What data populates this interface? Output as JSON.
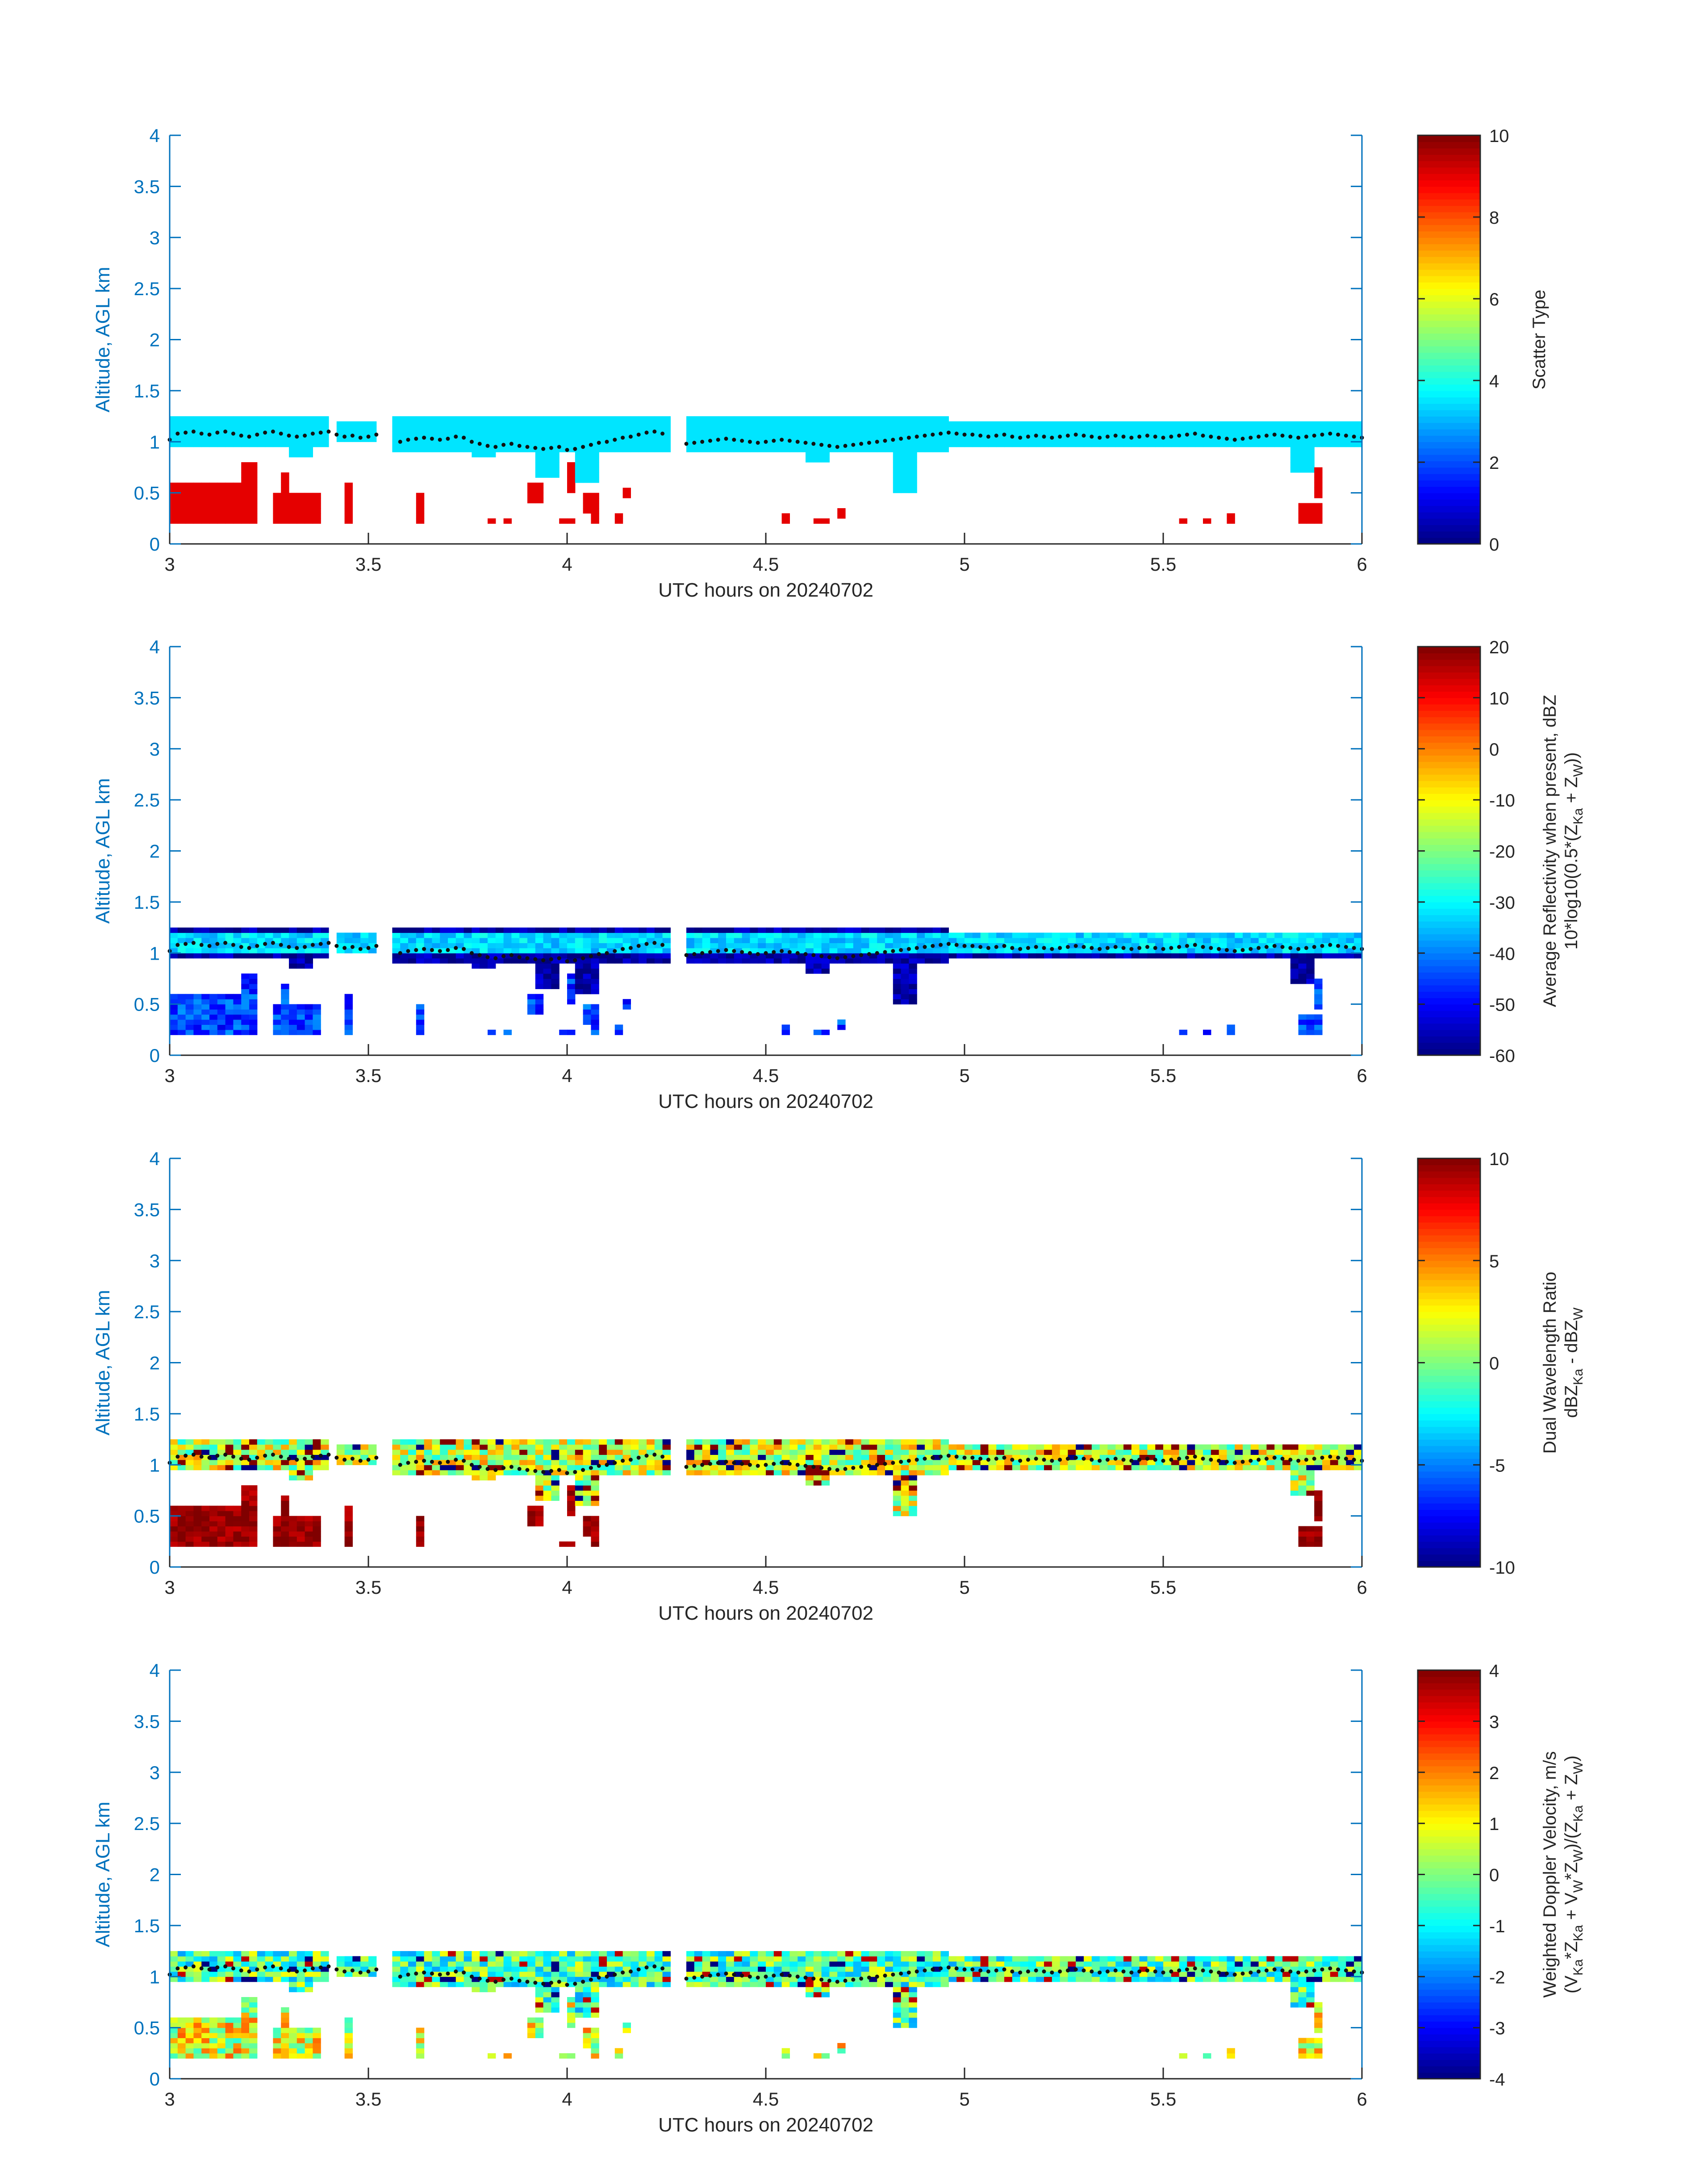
{
  "chart_data": [
    {
      "type": "heatmap",
      "title": "",
      "xlabel": "UTC hours on 20240702",
      "ylabel": "Altitude, AGL km",
      "xlim": [
        3,
        6
      ],
      "ylim": [
        0,
        4
      ],
      "x_ticks": [
        "3",
        "3.5",
        "4",
        "4.5",
        "5",
        "5.5",
        "6"
      ],
      "y_ticks": [
        "0",
        "0.5",
        "1",
        "1.5",
        "2",
        "2.5",
        "3",
        "3.5",
        "4"
      ],
      "colorbar": {
        "label_lines": [
          "Scatter Type"
        ],
        "range": [
          0,
          10
        ],
        "ticks": [
          "0",
          "2",
          "4",
          "6",
          "8",
          "10"
        ],
        "colormap": "jet"
      },
      "fields": {
        "low_layer_value": 9,
        "cloud_layer_value": 3.5
      }
    },
    {
      "type": "heatmap",
      "title": "",
      "xlabel": "UTC hours on 20240702",
      "ylabel": "Altitude, AGL km",
      "xlim": [
        3,
        6
      ],
      "ylim": [
        0,
        4
      ],
      "x_ticks": [
        "3",
        "3.5",
        "4",
        "4.5",
        "5",
        "5.5",
        "6"
      ],
      "y_ticks": [
        "0",
        "0.5",
        "1",
        "1.5",
        "2",
        "2.5",
        "3",
        "3.5",
        "4"
      ],
      "colorbar": {
        "label_lines": [
          "Average Reflectivity when present, dBZ",
          "10*log10(0.5*(Z_Ka + Z_W))"
        ],
        "range": [
          -60,
          20
        ],
        "ticks": [
          "-60",
          "-50",
          "-40",
          "-30",
          "-20",
          "-10",
          "0",
          "10",
          "20"
        ],
        "colormap": "jet"
      },
      "fields": {
        "cloud_core_value": -33,
        "cloud_edge_value": -57,
        "low_layer_value": -45
      }
    },
    {
      "type": "heatmap",
      "title": "",
      "xlabel": "UTC hours on 20240702",
      "ylabel": "Altitude, AGL km",
      "xlim": [
        3,
        6
      ],
      "ylim": [
        0,
        4
      ],
      "x_ticks": [
        "3",
        "3.5",
        "4",
        "4.5",
        "5",
        "5.5",
        "6"
      ],
      "y_ticks": [
        "0",
        "0.5",
        "1",
        "1.5",
        "2",
        "2.5",
        "3",
        "3.5",
        "4"
      ],
      "colorbar": {
        "label_lines": [
          "Dual Wavelength Ratio",
          "dBZ_Ka - dBZ_W"
        ],
        "range": [
          -10,
          10
        ],
        "ticks": [
          "-10",
          "-5",
          "0",
          "5",
          "10"
        ],
        "colormap": "jet"
      },
      "fields": {
        "cloud_core_value": 1.5,
        "low_layer_value": 9.5
      }
    },
    {
      "type": "heatmap",
      "title": "",
      "xlabel": "UTC hours on 20240702",
      "ylabel": "Altitude, AGL km",
      "xlim": [
        3,
        6
      ],
      "ylim": [
        0,
        4
      ],
      "x_ticks": [
        "3",
        "3.5",
        "4",
        "4.5",
        "5",
        "5.5",
        "6"
      ],
      "y_ticks": [
        "0",
        "0.5",
        "1",
        "1.5",
        "2",
        "2.5",
        "3",
        "3.5",
        "4"
      ],
      "colorbar": {
        "label_lines": [
          "Weighted Doppler Velocity, m/s",
          "(V_Ka*Z_Ka + V_W*Z_W)/(Z_Ka + Z_W)"
        ],
        "range": [
          -4,
          4
        ],
        "ticks": [
          "-4",
          "-3",
          "-2",
          "-1",
          "0",
          "1",
          "2",
          "3",
          "4"
        ],
        "colormap": "jet"
      },
      "fields": {
        "cloud_core_value": -0.4,
        "low_layer_value": 0.8
      }
    }
  ],
  "cloud_layer": {
    "columns": [
      {
        "t0": 3.0,
        "t1": 3.4,
        "base": 0.95,
        "top": 1.23
      },
      {
        "t0": 3.42,
        "t1": 3.53,
        "base": 0.98,
        "top": 1.22
      },
      {
        "t0": 3.57,
        "t1": 4.25,
        "base": 0.9,
        "top": 1.25
      },
      {
        "t0": 4.3,
        "t1": 4.95,
        "base": 0.88,
        "top": 1.25
      },
      {
        "t0": 4.95,
        "t1": 5.55,
        "base": 0.95,
        "top": 1.2
      },
      {
        "t0": 5.56,
        "t1": 6.0,
        "base": 0.93,
        "top": 1.22
      }
    ],
    "dips": [
      {
        "t": 3.34,
        "bottom": 0.85
      },
      {
        "t": 3.8,
        "bottom": 0.85
      },
      {
        "t": 3.95,
        "bottom": 0.65
      },
      {
        "t": 4.05,
        "bottom": 0.6
      },
      {
        "t": 4.62,
        "bottom": 0.8
      },
      {
        "t": 4.85,
        "bottom": 0.5
      },
      {
        "t": 5.85,
        "bottom": 0.7
      }
    ]
  },
  "low_layer": {
    "blocks": [
      {
        "t0": 3.0,
        "t1": 3.23,
        "bottom": 0.18,
        "top": 0.62
      },
      {
        "t0": 3.18,
        "t1": 3.23,
        "bottom": 0.18,
        "top": 0.82
      },
      {
        "t0": 3.26,
        "t1": 3.39,
        "bottom": 0.18,
        "top": 0.5
      },
      {
        "t0": 3.28,
        "t1": 3.3,
        "bottom": 0.18,
        "top": 0.72
      },
      {
        "t0": 3.44,
        "t1": 3.47,
        "bottom": 0.18,
        "top": 0.58
      },
      {
        "t0": 3.62,
        "t1": 3.65,
        "bottom": 0.18,
        "top": 0.48
      },
      {
        "t0": 3.8,
        "t1": 3.82,
        "bottom": 0.18,
        "top": 0.26
      },
      {
        "t0": 3.85,
        "t1": 3.87,
        "bottom": 0.18,
        "top": 0.26
      },
      {
        "t0": 3.9,
        "t1": 3.94,
        "bottom": 0.42,
        "top": 0.62
      },
      {
        "t0": 3.92,
        "t1": 3.93,
        "bottom": 0.18,
        "top": 0.4
      },
      {
        "t0": 3.98,
        "t1": 4.02,
        "bottom": 0.18,
        "top": 0.26
      },
      {
        "t0": 4.0,
        "t1": 4.03,
        "bottom": 0.5,
        "top": 0.8
      },
      {
        "t0": 4.04,
        "t1": 4.07,
        "bottom": 0.32,
        "top": 0.52
      },
      {
        "t0": 4.06,
        "t1": 4.08,
        "bottom": 0.18,
        "top": 0.28
      },
      {
        "t0": 4.12,
        "t1": 4.14,
        "bottom": 0.18,
        "top": 0.32
      },
      {
        "t0": 4.14,
        "t1": 4.16,
        "bottom": 0.46,
        "top": 0.56
      },
      {
        "t0": 4.53,
        "t1": 4.55,
        "bottom": 0.18,
        "top": 0.28
      },
      {
        "t0": 4.62,
        "t1": 4.65,
        "bottom": 0.18,
        "top": 0.24
      },
      {
        "t0": 4.68,
        "t1": 4.7,
        "bottom": 0.24,
        "top": 0.36
      },
      {
        "t0": 5.54,
        "t1": 5.56,
        "bottom": 0.18,
        "top": 0.26
      },
      {
        "t0": 5.59,
        "t1": 5.61,
        "bottom": 0.18,
        "top": 0.24
      },
      {
        "t0": 5.66,
        "t1": 5.68,
        "bottom": 0.18,
        "top": 0.28
      },
      {
        "t0": 5.84,
        "t1": 5.9,
        "bottom": 0.18,
        "top": 0.42
      },
      {
        "t0": 5.88,
        "t1": 5.9,
        "bottom": 0.46,
        "top": 0.76
      }
    ]
  },
  "markers": {
    "t": [
      3.0,
      3.02,
      3.04,
      3.06,
      3.08,
      3.1,
      3.12,
      3.14,
      3.16,
      3.18,
      3.2,
      3.22,
      3.24,
      3.26,
      3.28,
      3.3,
      3.32,
      3.34,
      3.36,
      3.38,
      3.4,
      3.42,
      3.44,
      3.46,
      3.48,
      3.5,
      3.52,
      3.58,
      3.6,
      3.62,
      3.64,
      3.66,
      3.68,
      3.7,
      3.72,
      3.74,
      3.76,
      3.78,
      3.8,
      3.82,
      3.84,
      3.86,
      3.88,
      3.9,
      3.92,
      3.94,
      3.96,
      3.98,
      4.0,
      4.02,
      4.04,
      4.06,
      4.08,
      4.1,
      4.12,
      4.14,
      4.16,
      4.18,
      4.2,
      4.22,
      4.24,
      4.3,
      4.32,
      4.34,
      4.36,
      4.38,
      4.4,
      4.42,
      4.44,
      4.46,
      4.48,
      4.5,
      4.52,
      4.54,
      4.56,
      4.58,
      4.6,
      4.62,
      4.64,
      4.66,
      4.68,
      4.7,
      4.72,
      4.74,
      4.76,
      4.78,
      4.8,
      4.82,
      4.84,
      4.86,
      4.88,
      4.9,
      4.92,
      4.94,
      4.96,
      4.98,
      5.0,
      5.02,
      5.04,
      5.06,
      5.08,
      5.1,
      5.12,
      5.14,
      5.16,
      5.18,
      5.2,
      5.22,
      5.24,
      5.26,
      5.28,
      5.3,
      5.32,
      5.34,
      5.36,
      5.38,
      5.4,
      5.42,
      5.44,
      5.46,
      5.48,
      5.5,
      5.52,
      5.54,
      5.56,
      5.58,
      5.6,
      5.62,
      5.64,
      5.66,
      5.68,
      5.7,
      5.72,
      5.74,
      5.76,
      5.78,
      5.8,
      5.82,
      5.84,
      5.86,
      5.88,
      5.9,
      5.92,
      5.94,
      5.96,
      5.98,
      6.0
    ],
    "z": [
      1.02,
      1.08,
      1.09,
      1.1,
      1.08,
      1.07,
      1.09,
      1.1,
      1.08,
      1.06,
      1.05,
      1.07,
      1.09,
      1.1,
      1.08,
      1.06,
      1.05,
      1.06,
      1.08,
      1.09,
      1.1,
      1.07,
      1.05,
      1.06,
      1.04,
      1.05,
      1.07,
      1.0,
      1.02,
      1.03,
      1.04,
      1.03,
      1.02,
      1.03,
      1.05,
      1.04,
      1.0,
      0.98,
      0.96,
      0.95,
      0.97,
      0.98,
      0.96,
      0.95,
      0.94,
      0.93,
      0.94,
      0.95,
      0.92,
      0.93,
      0.95,
      0.97,
      0.99,
      1.0,
      1.02,
      1.04,
      1.05,
      1.07,
      1.09,
      1.1,
      1.08,
      0.98,
      0.99,
      1.0,
      1.01,
      1.02,
      1.03,
      1.02,
      1.01,
      1.0,
      0.99,
      1.0,
      1.01,
      1.02,
      1.01,
      1.0,
      0.99,
      0.98,
      0.97,
      0.96,
      0.95,
      0.96,
      0.97,
      0.98,
      0.99,
      1.0,
      1.01,
      1.02,
      1.03,
      1.04,
      1.05,
      1.06,
      1.07,
      1.08,
      1.09,
      1.08,
      1.07,
      1.07,
      1.06,
      1.05,
      1.06,
      1.07,
      1.05,
      1.04,
      1.05,
      1.06,
      1.05,
      1.04,
      1.05,
      1.06,
      1.07,
      1.06,
      1.05,
      1.04,
      1.05,
      1.06,
      1.05,
      1.04,
      1.05,
      1.06,
      1.05,
      1.04,
      1.05,
      1.06,
      1.07,
      1.08,
      1.06,
      1.05,
      1.04,
      1.03,
      1.02,
      1.03,
      1.04,
      1.05,
      1.06,
      1.07,
      1.06,
      1.05,
      1.04,
      1.05,
      1.06,
      1.07,
      1.08,
      1.07,
      1.06,
      1.05,
      1.04
    ]
  }
}
